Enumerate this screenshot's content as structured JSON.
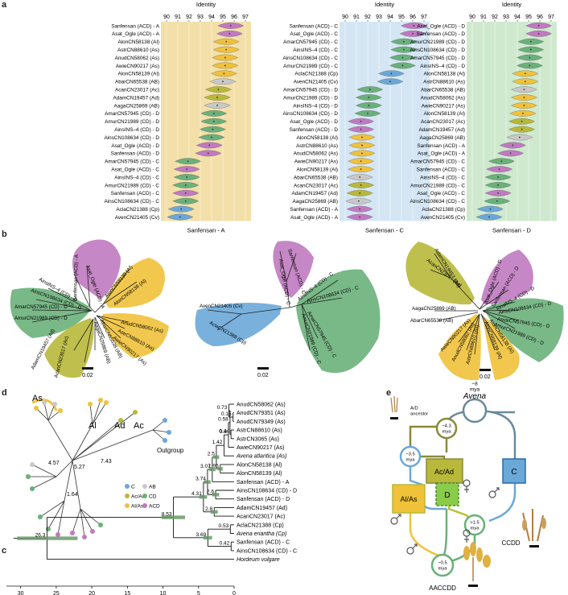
{
  "panel_labels": {
    "a": "a",
    "b": "b",
    "c": "c",
    "d": "d",
    "e": "e"
  },
  "colors": {
    "As": "#f0c23a",
    "Al": "#f0c23a",
    "Ac": "#b8b83a",
    "Ad": "#b8b83a",
    "AB": "#c8c8c8",
    "ACD": "#c07ac0",
    "CD": "#6ab07a",
    "C": "#6aa8d8",
    "Cp": "#6aa8d8",
    "Cv": "#6aa8d8",
    "bg_A": "#f3dfa8",
    "bg_C": "#d4e6f4",
    "bg_D": "#cfe9cf"
  },
  "chart_data": [
    {
      "type": "violin",
      "panel": "a",
      "title": "Identity",
      "xlabel": "Sanfensan - A",
      "xlim": [
        89.5,
        97.5
      ],
      "ticks": [
        "90",
        "91",
        "92",
        "93",
        "94",
        "95",
        "96",
        "97"
      ],
      "rows": [
        {
          "label": "Sanfensan (ACD) - A",
          "g": "ACD",
          "m": 95.7
        },
        {
          "label": "Asat_Ogle (ACD) - A",
          "g": "ACD",
          "m": 95.6
        },
        {
          "label": "AlonCN58138 (Al)",
          "g": "Al",
          "m": 95.3
        },
        {
          "label": "AstrCN88610 (As)",
          "g": "As",
          "m": 95.3
        },
        {
          "label": "AnudCN58062 (As)",
          "g": "As",
          "m": 95.2
        },
        {
          "label": "AwieCN90217 (As)",
          "g": "As",
          "m": 95.2
        },
        {
          "label": "AlonCN58139 (Al)",
          "g": "Al",
          "m": 95.1
        },
        {
          "label": "AbarCN65538 (AB)",
          "g": "AB",
          "m": 95.0
        },
        {
          "label": "AcanCN23017 (Ac)",
          "g": "Ac",
          "m": 94.6
        },
        {
          "label": "AdamCN19457 (Ad)",
          "g": "Ad",
          "m": 94.5
        },
        {
          "label": "AagaCN25869 (AB)",
          "g": "AB",
          "m": 94.5
        },
        {
          "label": "AmarCN57945 (CD) - D",
          "g": "CD",
          "m": 94.2
        },
        {
          "label": "AmurCN21989 (CD) - D",
          "g": "CD",
          "m": 94.2
        },
        {
          "label": "AinsINS–4 (CD) - D",
          "g": "CD",
          "m": 94.1
        },
        {
          "label": "AinsCN108634 (CD) - D",
          "g": "CD",
          "m": 94.0
        },
        {
          "label": "Asat_Ogle (ACD) - D",
          "g": "ACD",
          "m": 93.8
        },
        {
          "label": "Sanfensan (ACD) - D",
          "g": "ACD",
          "m": 93.7
        },
        {
          "label": "AmarCN57945 (CD) - C",
          "g": "CD",
          "m": 91.9
        },
        {
          "label": "Asat_Ogle (ACD) - C",
          "g": "ACD",
          "m": 91.8
        },
        {
          "label": "AinsINS–4 (CD) - C",
          "g": "CD",
          "m": 91.8
        },
        {
          "label": "AmurCN21989 (CD) - C",
          "g": "CD",
          "m": 91.7
        },
        {
          "label": "Sanfensan (ACD) - C",
          "g": "ACD",
          "m": 91.7
        },
        {
          "label": "AinsCN108634 (CD) - C",
          "g": "CD",
          "m": 91.7
        },
        {
          "label": "AclaCN21388 (Cp)",
          "g": "C",
          "m": 91.3
        },
        {
          "label": "AvenCN21405 (Cv)",
          "g": "C",
          "m": 91.2
        }
      ]
    },
    {
      "type": "violin",
      "panel": "a",
      "title": "Identity",
      "xlabel": "Sanfensan - C",
      "xlim": [
        89.5,
        97.5
      ],
      "ticks": [
        "90",
        "91",
        "92",
        "93",
        "94",
        "95",
        "96",
        "97"
      ],
      "rows": [
        {
          "label": "Sanfensan (ACD) - C",
          "g": "ACD",
          "m": 96.1
        },
        {
          "label": "Asat_Ogle (ACD) - C",
          "g": "ACD",
          "m": 96.0
        },
        {
          "label": "AmarCN57945 (CD) - C",
          "g": "CD",
          "m": 95.2
        },
        {
          "label": "AinsINS–4 (CD) - C",
          "g": "CD",
          "m": 95.2
        },
        {
          "label": "AinsCN108634 (CD) - C",
          "g": "CD",
          "m": 95.1
        },
        {
          "label": "AmurCN21989 (CD) - C",
          "g": "CD",
          "m": 95.1
        },
        {
          "label": "AclaCN21388 (Cp)",
          "g": "C",
          "m": 94.1
        },
        {
          "label": "AvenCN21405 (Cv)",
          "g": "C",
          "m": 94.0
        },
        {
          "label": "AmarCN57945 (CD) - D",
          "g": "CD",
          "m": 92.2
        },
        {
          "label": "AmurCN21989 (CD) - D",
          "g": "CD",
          "m": 92.1
        },
        {
          "label": "AinsINS–4 (CD) - D",
          "g": "CD",
          "m": 92.1
        },
        {
          "label": "AinsCN108634 (CD) - D",
          "g": "CD",
          "m": 92.0
        },
        {
          "label": "Asat_Ogle (ACD) - D",
          "g": "ACD",
          "m": 91.4
        },
        {
          "label": "Sanfensan (ACD) - D",
          "g": "ACD",
          "m": 91.4
        },
        {
          "label": "AlonCN58138 (Al)",
          "g": "Al",
          "m": 91.5
        },
        {
          "label": "AstrCN88610 (As)",
          "g": "As",
          "m": 91.5
        },
        {
          "label": "AnudCN58062 (As)",
          "g": "As",
          "m": 91.5
        },
        {
          "label": "AwieCN90217 (As)",
          "g": "As",
          "m": 91.4
        },
        {
          "label": "AlonCN58139 (Al)",
          "g": "Al",
          "m": 91.4
        },
        {
          "label": "AbarCN65538 (AB)",
          "g": "AB",
          "m": 91.3
        },
        {
          "label": "AcanCN23017 (Ac)",
          "g": "Ac",
          "m": 91.4
        },
        {
          "label": "AdamCN19457 (Ad)",
          "g": "Ad",
          "m": 91.3
        },
        {
          "label": "AagaCN25869 (AB)",
          "g": "AB",
          "m": 91.2
        },
        {
          "label": "Sanfensan (ACD) - A",
          "g": "ACD",
          "m": 91.3
        },
        {
          "label": "Asat_Ogle (ACD) - A",
          "g": "ACD",
          "m": 91.3
        }
      ]
    },
    {
      "type": "violin",
      "panel": "a",
      "title": "Identity",
      "xlabel": "Sanfensan - D",
      "xlim": [
        89.5,
        97.5
      ],
      "ticks": [
        "90",
        "91",
        "92",
        "93",
        "94",
        "95",
        "96",
        "97"
      ],
      "rows": [
        {
          "label": "Asat_Ogle (ACD) - D",
          "g": "ACD",
          "m": 95.9
        },
        {
          "label": "Sanfensan (ACD) - D",
          "g": "ACD",
          "m": 95.9
        },
        {
          "label": "AmurCN21989 (CD) - D",
          "g": "CD",
          "m": 95.2
        },
        {
          "label": "AinsCN108634 (CD) - D",
          "g": "CD",
          "m": 95.2
        },
        {
          "label": "AmarCN57945 (CD) - D",
          "g": "CD",
          "m": 95.1
        },
        {
          "label": "AinsINS–4 (CD) - D",
          "g": "CD",
          "m": 95.1
        },
        {
          "label": "AlonCN58138 (Al)",
          "g": "Al",
          "m": 94.7
        },
        {
          "label": "AstrCN88610 (As)",
          "g": "As",
          "m": 94.7
        },
        {
          "label": "AbarCN65538 (AB)",
          "g": "AB",
          "m": 94.6
        },
        {
          "label": "AnudCN58062 (As)",
          "g": "As",
          "m": 94.6
        },
        {
          "label": "AwieCN90217 (As)",
          "g": "As",
          "m": 94.6
        },
        {
          "label": "AlonCN58139 (Al)",
          "g": "Al",
          "m": 94.5
        },
        {
          "label": "AcanCN23017 (Ac)",
          "g": "Ac",
          "m": 94.4
        },
        {
          "label": "AdamCN19457 (Ad)",
          "g": "Ad",
          "m": 94.4
        },
        {
          "label": "AagaCN25869 (AB)",
          "g": "AB",
          "m": 94.2
        },
        {
          "label": "Sanfensan (ACD) - A",
          "g": "ACD",
          "m": 93.6
        },
        {
          "label": "Asat_Ogle (ACD) - A",
          "g": "ACD",
          "m": 93.4
        },
        {
          "label": "AmarCN57945 (CD) - C",
          "g": "CD",
          "m": 92.6
        },
        {
          "label": "Sanfensan (ACD) - C",
          "g": "ACD",
          "m": 92.4
        },
        {
          "label": "AinsINS–4 (CD) - C",
          "g": "CD",
          "m": 92.3
        },
        {
          "label": "AmurCN21989 (CD) - C",
          "g": "CD",
          "m": 92.3
        },
        {
          "label": "Asat_Ogle (ACD) - C",
          "g": "ACD",
          "m": 92.3
        },
        {
          "label": "AinsCN108634 (CD) - C",
          "g": "CD",
          "m": 92.2
        },
        {
          "label": "AclaCN21388 (Cp)",
          "g": "C",
          "m": 91.6
        },
        {
          "label": "AvenCN21405 (Cv)",
          "g": "C",
          "m": 91.5
        }
      ]
    },
    {
      "type": "tree",
      "panel": "c",
      "xlim": [
        32,
        0
      ],
      "ticks": [
        "30",
        "25",
        "20",
        "15",
        "10",
        "5",
        "0"
      ],
      "taxa": [
        {
          "label": "AnudCN58062 (As)"
        },
        {
          "label": "AnudCN79351 (As)"
        },
        {
          "label": "AnudCN79349 (As)"
        },
        {
          "label": "AstrCN88610 (As)"
        },
        {
          "label": "AstrCN3065 (As)"
        },
        {
          "label": "AwieCN90217 (As)"
        },
        {
          "label": "Avena atlantica (As)",
          "italic": true
        },
        {
          "label": "AlonCN58138 (Al)"
        },
        {
          "label": "AlonCN58139 (Al)"
        },
        {
          "label": "Sanfensan (ACD) - A"
        },
        {
          "label": "AinsCN108634 (CD) - D"
        },
        {
          "label": "Sanfensan (ACD) - D"
        },
        {
          "label": "AdamCN19457 (Ad)"
        },
        {
          "label": "AcanCN23017 (Ac)"
        },
        {
          "label": "AclaCN21388 (Cp)"
        },
        {
          "label": "Avena eriantha (Cp)",
          "italic": true
        },
        {
          "label": "Sanfensan (ACD) - C"
        },
        {
          "label": "AinsCN108634 (CD) - C"
        },
        {
          "label": "Hordeum vulgare",
          "italic": true
        }
      ],
      "node_ages": [
        "0.15",
        "0.73",
        "0.44",
        "0.58",
        "0.8",
        "1.42",
        "2.5",
        "3.07",
        "1.95",
        "3.74",
        "4.31",
        "2.6",
        "2.8",
        "8.53",
        "0.53",
        "0.42",
        "3.69",
        "26.3"
      ]
    }
  ],
  "panel_b": {
    "scale": "0.02",
    "tree1": {
      "labels": [
        "Asat_Ogle (ACD) - A",
        "Sanfensan (ACD) - A",
        "AlonCN58139 (Al)",
        "AlonCN58138 (Al)",
        "AinsINS–4 (CD) - D",
        "AinsCN108634 (CD) - D",
        "AmarCN57945 (CD) - D",
        "AmurCN21989 (CD) - D",
        "AnudCN58062 (As)",
        "AstrCN88610 (As)",
        "AwieCN90217 (As)",
        "AbarCN65538 (AB)",
        "AagaCN25869 (AB)",
        "AdamCN19457 (Ad)",
        "AcanCN23017 (Ac)"
      ]
    },
    "tree2": {
      "labels": [
        "Sanfensan (ACD) - C",
        "Asat_Ogle (ACD) - C",
        "AinsINS–4 (CD) - C",
        "AinsCN108634 (CD) - C",
        "AmarCN57945 (CD) - C",
        "AmurCN21989 (CD) - C",
        "AvenCN21405 (Cv)",
        "AclaCN21388 (Cp)"
      ]
    },
    "tree3": {
      "labels": [
        "AdamCN19457 (Ad)",
        "AcanCN23017 (Ac)",
        "Asat_Ogle (ACD) - D",
        "Sanfensan (ACD) - D",
        "AinsINS–4 (CD) - D",
        "AinsCN108634 (CD) - D",
        "AmarCN57945 (CD) - D",
        "AmurCN21989 (CD) - D",
        "AagaCN25869 (AB)",
        "AbarCN65538 (AB)",
        "AwieCN90217 (As)",
        "AnudCN58062 (As)",
        "AstrCN88610 (As)",
        "AlonCN58139 (Al)",
        "AlonCN58138 (Al)"
      ]
    }
  },
  "panel_d": {
    "clade_labels": [
      "As",
      "Al",
      "Ad",
      "Ac",
      "Outgroup"
    ],
    "branch_values": [
      "4.57",
      "5.27",
      "7.43",
      "1.64"
    ],
    "legend": [
      {
        "label": "C",
        "key": "C"
      },
      {
        "label": "AB",
        "key": "AB"
      },
      {
        "label": "Ac/Ad",
        "key": "Ac"
      },
      {
        "label": "CD",
        "key": "CD"
      },
      {
        "label": "Al/As",
        "key": "As"
      },
      {
        "label": "ACD",
        "key": "ACD"
      }
    ]
  },
  "panel_e": {
    "title": "Avena",
    "root_age": "~8\nmya",
    "ancestor_label": "A/D\nancestor",
    "age_43": "~4.3\nmya",
    "age_35": "~3.5\nmya",
    "age_15": ">1.5\nmya",
    "age_05": "~0.5\nmya",
    "box_acad": "Ac/Ad",
    "box_c": "C",
    "box_alas": "Al/As",
    "box_d": "D",
    "label_ccdd": "CCDD",
    "label_aaccdd": "AACCDD"
  }
}
